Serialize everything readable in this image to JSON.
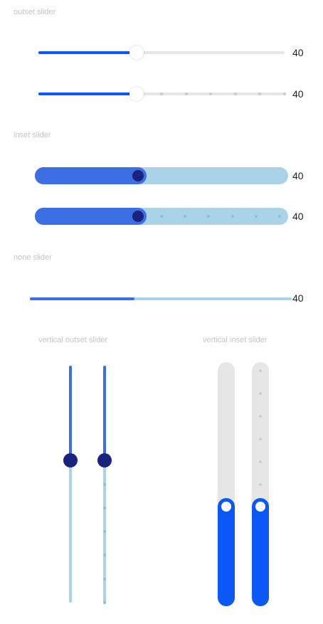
{
  "titles": {
    "outset": "outset slider",
    "inset": "inset slider",
    "none": "none slider",
    "vertical_outset": "vertical outset slider",
    "vertical_inset": "vertical inset slider"
  },
  "colors": {
    "primary": "#0a59f7",
    "secondary_fill": "#3c6ee4",
    "light_track": "#abd3e8",
    "grey_track": "#e6e6e6",
    "dark_thumb": "#1a237e"
  },
  "sliders": {
    "outset_continuous": {
      "value": 40,
      "label": "40",
      "max": 100
    },
    "outset_stepped": {
      "value": 40,
      "label": "40",
      "max": 100,
      "step": 10
    },
    "inset_continuous": {
      "value": 40,
      "label": "40",
      "max": 100
    },
    "inset_stepped": {
      "value": 40,
      "label": "40",
      "max": 100,
      "step": 10
    },
    "none_continuous": {
      "value": 40,
      "label": "40",
      "max": 100
    },
    "vertical_outset_continuous": {
      "value": 40,
      "max": 100
    },
    "vertical_outset_stepped": {
      "value": 40,
      "max": 100,
      "step": 10
    },
    "vertical_inset_continuous": {
      "value": 40,
      "max": 100
    },
    "vertical_inset_stepped": {
      "value": 40,
      "max": 100,
      "step": 10
    }
  }
}
